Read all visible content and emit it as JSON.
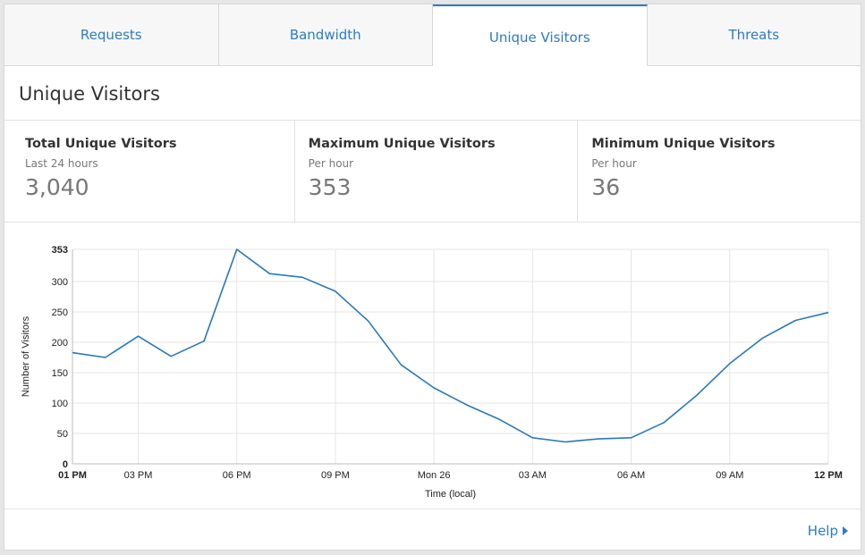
{
  "tabs": [
    {
      "label": "Requests",
      "active": false
    },
    {
      "label": "Bandwidth",
      "active": false
    },
    {
      "label": "Unique Visitors",
      "active": true
    },
    {
      "label": "Threats",
      "active": false
    }
  ],
  "section_title": "Unique Visitors",
  "stats": [
    {
      "label": "Total Unique Visitors",
      "sub": "Last 24 hours",
      "value": "3,040"
    },
    {
      "label": "Maximum Unique Visitors",
      "sub": "Per hour",
      "value": "353"
    },
    {
      "label": "Minimum Unique Visitors",
      "sub": "Per hour",
      "value": "36"
    }
  ],
  "help_label": "Help",
  "colors": {
    "accent": "#2f7bbf",
    "line": "#2a78b8",
    "grid": "#e5e5e5"
  },
  "chart_data": {
    "type": "line",
    "title": "",
    "xlabel": "Time (local)",
    "ylabel": "Number of Visitors",
    "ylim": [
      0,
      353
    ],
    "yticks": [
      0,
      50,
      100,
      150,
      200,
      250,
      300,
      353
    ],
    "xticks": [
      {
        "index": 0,
        "label": "01 PM",
        "bold": true
      },
      {
        "index": 2,
        "label": "03 PM",
        "bold": false
      },
      {
        "index": 5,
        "label": "06 PM",
        "bold": false
      },
      {
        "index": 8,
        "label": "09 PM",
        "bold": false
      },
      {
        "index": 11,
        "label": "Mon 26",
        "bold": false
      },
      {
        "index": 14,
        "label": "03 AM",
        "bold": false
      },
      {
        "index": 17,
        "label": "06 AM",
        "bold": false
      },
      {
        "index": 20,
        "label": "09 AM",
        "bold": false
      },
      {
        "index": 23,
        "label": "12 PM",
        "bold": true
      }
    ],
    "series": [
      {
        "name": "Unique Visitors",
        "values": [
          183,
          175,
          210,
          177,
          202,
          353,
          313,
          307,
          284,
          235,
          163,
          125,
          97,
          73,
          43,
          36,
          41,
          43,
          68,
          113,
          165,
          207,
          236,
          249
        ]
      }
    ]
  }
}
